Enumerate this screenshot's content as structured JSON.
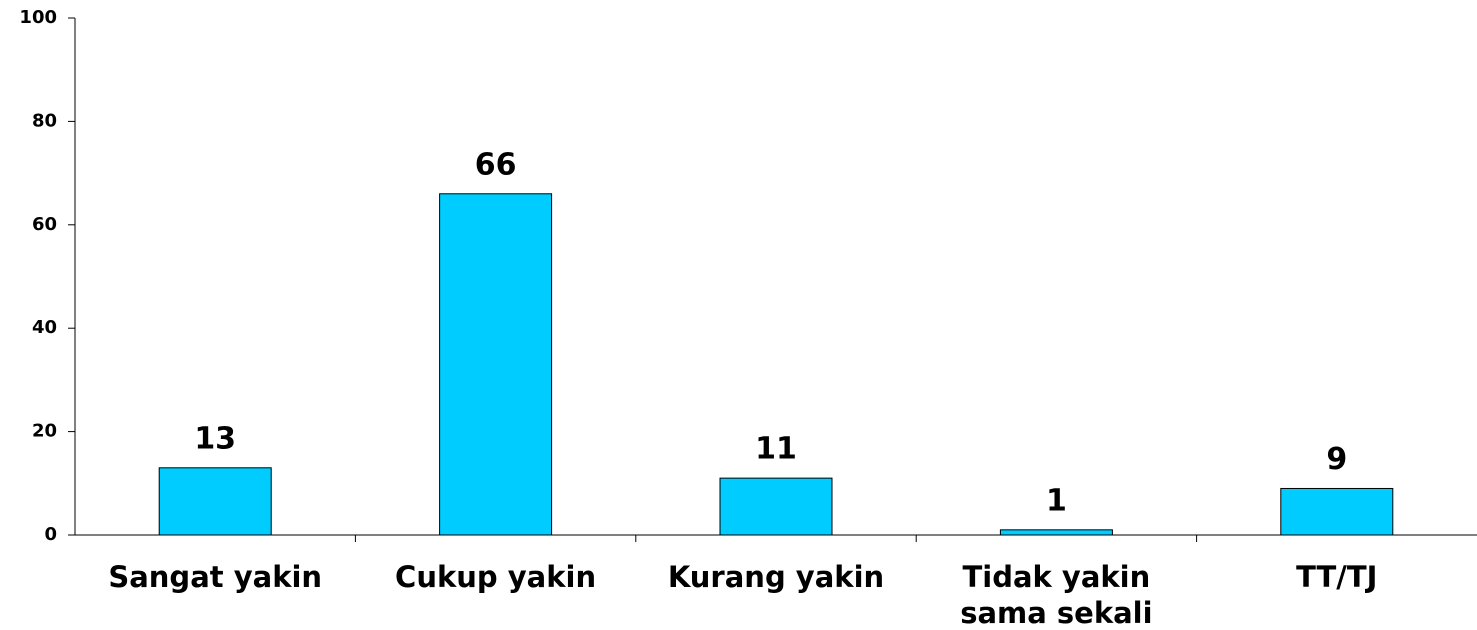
{
  "chart_data": {
    "type": "bar",
    "categories": [
      "Sangat yakin",
      "Cukup yakin",
      "Kurang yakin",
      "Tidak yakin sama sekali",
      "TT/TJ"
    ],
    "values": [
      13,
      66,
      11,
      1,
      9
    ],
    "color": "#00ccff",
    "ylim": [
      0,
      100
    ],
    "yticks": [
      0,
      20,
      40,
      60,
      80,
      100
    ],
    "grid": false
  }
}
